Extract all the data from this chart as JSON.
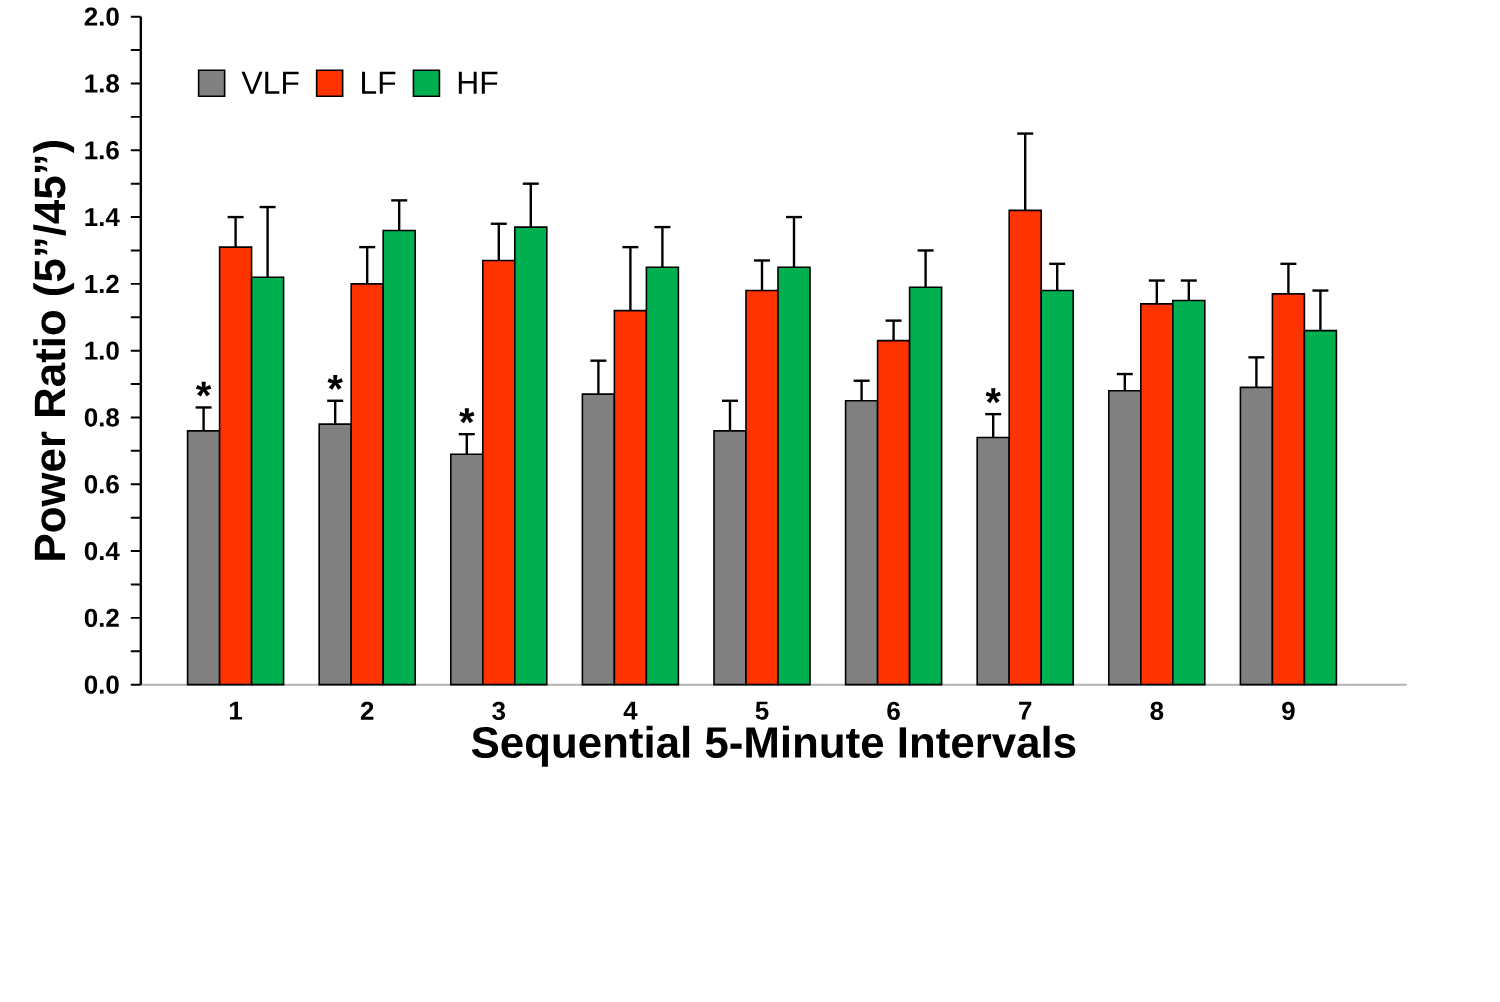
{
  "chart_data": {
    "type": "bar",
    "xlabel": "Sequential 5-Minute Intervals",
    "ylabel": "Power Ratio (5”/45”)",
    "categories": [
      "1",
      "2",
      "3",
      "4",
      "5",
      "6",
      "7",
      "8",
      "9"
    ],
    "series": [
      {
        "name": "VLF",
        "color": "#808080",
        "values": [
          0.76,
          0.78,
          0.69,
          0.87,
          0.76,
          0.85,
          0.74,
          0.88,
          0.89
        ],
        "value_labels": [
          "*",
          "*",
          "*",
          null,
          null,
          null,
          "*",
          null,
          null
        ],
        "errors": [
          [
            0.76,
            0.83
          ],
          [
            0.78,
            0.85
          ],
          [
            0.69,
            0.75
          ],
          [
            0.87,
            0.97
          ],
          [
            0.76,
            0.85
          ],
          [
            0.85,
            0.91
          ],
          [
            0.74,
            0.81
          ],
          [
            0.88,
            0.93
          ],
          [
            0.89,
            0.98
          ]
        ]
      },
      {
        "name": "LF",
        "color": "#ff3300",
        "values": [
          1.31,
          1.2,
          1.27,
          1.12,
          1.18,
          1.03,
          1.42,
          1.14,
          1.17
        ],
        "errors": [
          [
            1.31,
            1.4
          ],
          [
            1.2,
            1.31
          ],
          [
            1.27,
            1.38
          ],
          [
            1.12,
            1.31
          ],
          [
            1.18,
            1.27
          ],
          [
            1.03,
            1.09
          ],
          [
            1.42,
            1.65
          ],
          [
            1.14,
            1.21
          ],
          [
            1.17,
            1.26
          ]
        ]
      },
      {
        "name": "HF",
        "color": "#00b050",
        "values": [
          1.22,
          1.36,
          1.37,
          1.25,
          1.25,
          1.19,
          1.18,
          1.15,
          1.06
        ],
        "errors": [
          [
            1.22,
            1.43
          ],
          [
            1.36,
            1.45
          ],
          [
            1.37,
            1.5
          ],
          [
            1.25,
            1.37
          ],
          [
            1.25,
            1.4
          ],
          [
            1.19,
            1.3
          ],
          [
            1.18,
            1.26
          ],
          [
            1.15,
            1.21
          ],
          [
            1.06,
            1.18
          ]
        ]
      }
    ],
    "ylim": [
      0,
      2.0
    ],
    "yticks": [
      {
        "value": 0,
        "label": "0.0"
      },
      0.2,
      0.4,
      0.6,
      0.8,
      {
        "value": 1.0,
        "label": "1.0"
      },
      1.2,
      1.4,
      1.6,
      1.8,
      {
        "value": 2.0,
        "label": "2.0"
      }
    ],
    "grid": false,
    "legend": "top left"
  }
}
